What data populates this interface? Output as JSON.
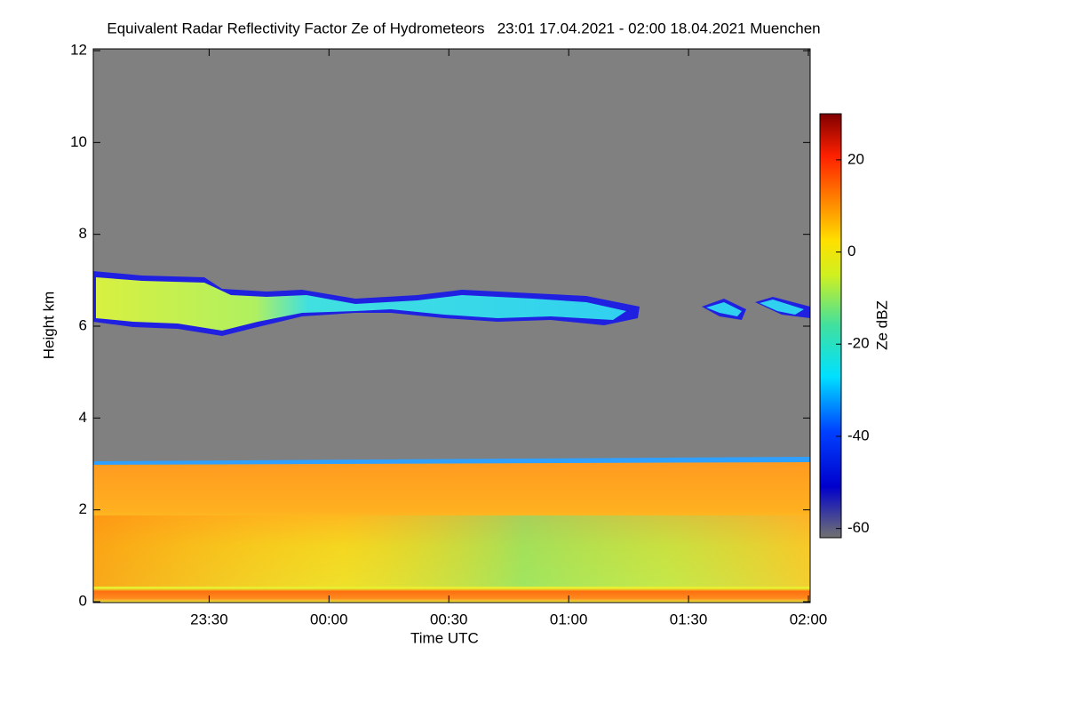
{
  "chart_data": {
    "type": "heatmap",
    "title": "Equivalent Radar Reflectivity Factor Ze of Hydrometeors   23:01 17.04.2021 - 02:00 18.04.2021 Muenchen",
    "x_label": "Time UTC",
    "y_label": "Height km",
    "colorbar_label": "Ze dBZ",
    "xlim": [
      1381,
      1560
    ],
    "xticks": [
      {
        "value": 1410,
        "label": "23:30"
      },
      {
        "value": 1440,
        "label": "00:00"
      },
      {
        "value": 1470,
        "label": "00:30"
      },
      {
        "value": 1500,
        "label": "01:00"
      },
      {
        "value": 1530,
        "label": "01:30"
      },
      {
        "value": 1560,
        "label": "02:00"
      }
    ],
    "ylim": [
      0,
      12
    ],
    "yticks": [
      0,
      2,
      4,
      6,
      8,
      10,
      12
    ],
    "clim": [
      -62,
      30
    ],
    "cticks": [
      20,
      0,
      -20,
      -40,
      -60
    ]
  }
}
